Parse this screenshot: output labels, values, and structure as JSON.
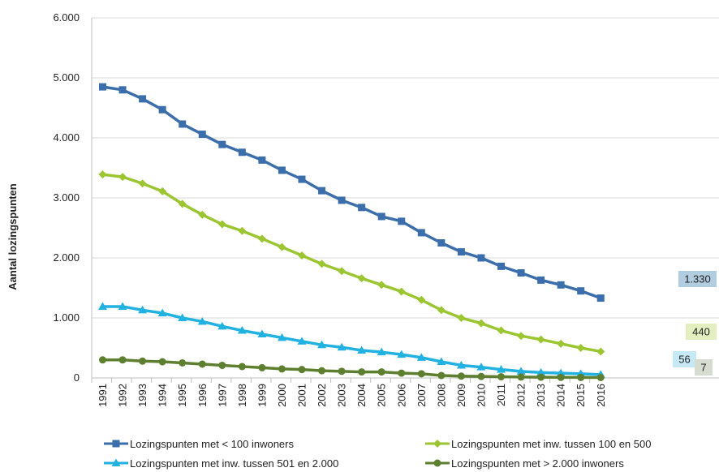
{
  "chart_data": {
    "type": "line",
    "ylabel": "Aantal lozingspunten",
    "ylim": [
      0,
      6000
    ],
    "yticks": [
      0,
      1000,
      2000,
      3000,
      4000,
      5000,
      6000
    ],
    "ytick_labels": [
      "0",
      "1.000",
      "2.000",
      "3.000",
      "4.000",
      "5.000",
      "6.000"
    ],
    "x": [
      "1991",
      "1992",
      "1993",
      "1994",
      "1995",
      "1996",
      "1997",
      "1998",
      "1999",
      "2000",
      "2001",
      "2002",
      "2003",
      "2004",
      "2005",
      "2006",
      "2007",
      "2008",
      "2009",
      "2010",
      "2011",
      "2012",
      "2013",
      "2014",
      "2015",
      "2016"
    ],
    "grid": "horizontal",
    "legend_position": "bottom",
    "series": [
      {
        "name": "Lozingspunten met < 100 inwoners",
        "color": "#3b6eaa",
        "marker": "square",
        "values": [
          4850,
          4800,
          4650,
          4470,
          4230,
          4060,
          3890,
          3760,
          3630,
          3460,
          3310,
          3120,
          2960,
          2840,
          2690,
          2610,
          2420,
          2250,
          2100,
          2000,
          1860,
          1750,
          1630,
          1550,
          1450,
          1330
        ],
        "end_label": "1.330",
        "label_bg": "#b3cde0"
      },
      {
        "name": "Lozingspunten met inw. tussen 100 en 500",
        "color": "#9bc531",
        "marker": "diamond",
        "values": [
          3390,
          3350,
          3240,
          3110,
          2900,
          2720,
          2560,
          2450,
          2320,
          2180,
          2040,
          1900,
          1780,
          1660,
          1550,
          1440,
          1300,
          1130,
          1000,
          910,
          790,
          700,
          640,
          570,
          500,
          440
        ],
        "end_label": "440",
        "label_bg": "#e3efc0"
      },
      {
        "name": "Lozingspunten met inw. tussen 501 en 2.000",
        "color": "#22b2e2",
        "marker": "triangle",
        "values": [
          1190,
          1190,
          1130,
          1080,
          1000,
          940,
          860,
          790,
          730,
          670,
          610,
          550,
          510,
          460,
          430,
          390,
          340,
          270,
          210,
          180,
          140,
          110,
          90,
          80,
          70,
          56
        ],
        "end_label": "56",
        "label_bg": "#c7e8f5"
      },
      {
        "name": "Lozingspunten met > 2.000 inwoners",
        "color": "#5e7f2f",
        "marker": "circle",
        "values": [
          300,
          300,
          280,
          270,
          250,
          230,
          210,
          190,
          170,
          150,
          140,
          120,
          110,
          100,
          100,
          80,
          70,
          40,
          30,
          25,
          20,
          15,
          12,
          10,
          8,
          7
        ],
        "end_label": "7",
        "label_bg": "#d6dccf"
      }
    ]
  }
}
